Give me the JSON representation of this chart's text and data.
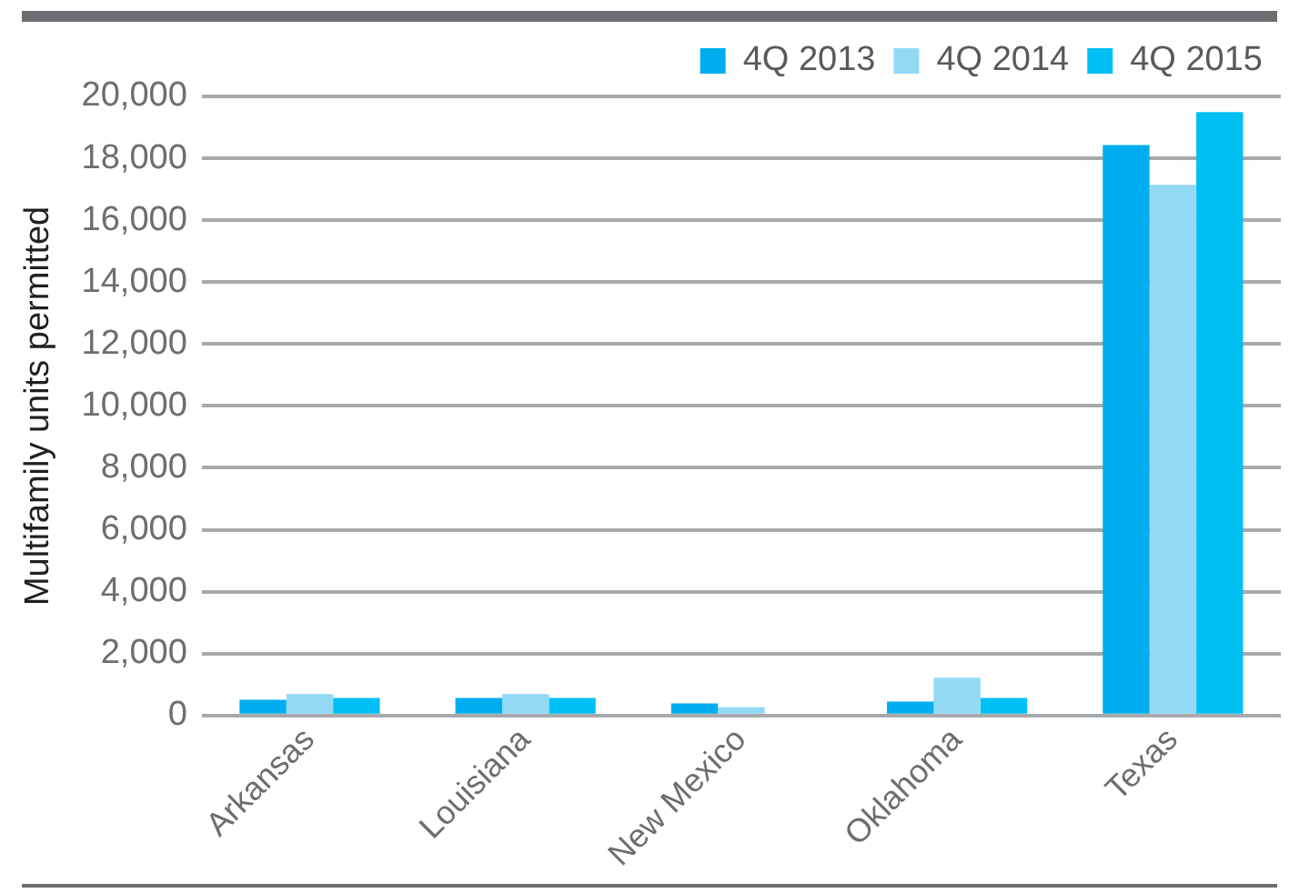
{
  "chart_data": {
    "type": "bar",
    "ylabel": "Multifamily units permitted",
    "categories": [
      "Arkansas",
      "Louisiana",
      "New Mexico",
      "Oklahoma",
      "Texas"
    ],
    "series": [
      {
        "name": "4Q 2013",
        "color": "#00aeef",
        "values": [
          510,
          570,
          390,
          450,
          18430
        ]
      },
      {
        "name": "4Q 2014",
        "color": "#92d9f6",
        "values": [
          690,
          690,
          270,
          1220,
          17140
        ]
      },
      {
        "name": "4Q 2015",
        "color": "#00bff3",
        "values": [
          570,
          570,
          0,
          570,
          19490
        ]
      }
    ],
    "ylim": [
      0,
      20000
    ],
    "yticks": [
      {
        "value": 0,
        "label": "0"
      },
      {
        "value": 2000,
        "label": "2,000"
      },
      {
        "value": 4000,
        "label": "4,000"
      },
      {
        "value": 6000,
        "label": "6,000"
      },
      {
        "value": 8000,
        "label": "8,000"
      },
      {
        "value": 10000,
        "label": "10,000"
      },
      {
        "value": 12000,
        "label": "12,000"
      },
      {
        "value": 14000,
        "label": "14,000"
      },
      {
        "value": 16000,
        "label": "16,000"
      },
      {
        "value": 18000,
        "label": "18,000"
      },
      {
        "value": 20000,
        "label": "20,000"
      }
    ],
    "grid": "y",
    "legend": "top right"
  }
}
